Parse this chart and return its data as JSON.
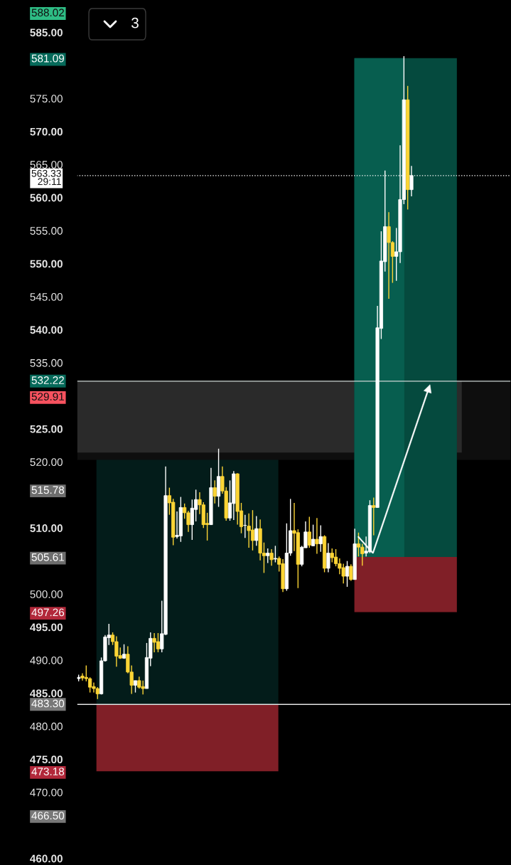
{
  "chart_data": {
    "type": "candlestick",
    "categories": [
      null,
      null,
      null,
      null,
      null,
      null,
      null,
      null,
      null,
      null,
      null,
      null,
      null,
      null,
      null,
      null,
      null,
      null,
      null,
      null,
      null,
      null,
      null,
      null,
      null,
      null,
      null,
      null,
      null,
      null,
      null,
      null,
      null,
      null,
      null,
      null,
      null,
      null,
      null,
      null,
      null,
      null,
      null,
      null,
      null,
      null,
      null,
      null,
      null,
      null,
      null,
      null,
      null,
      null,
      null,
      null,
      null,
      null,
      null,
      null,
      null,
      null,
      null,
      null,
      null,
      null,
      null,
      null,
      null,
      null,
      null,
      null,
      null,
      null,
      null,
      null,
      null,
      null,
      null,
      null,
      null,
      null,
      null,
      null,
      null,
      null,
      null,
      null,
      null
    ],
    "ohlc": [
      [
        487.2,
        487.8,
        486.8,
        487.4
      ],
      [
        487.6,
        488.0,
        486.9,
        487.3
      ],
      [
        487.4,
        489.2,
        486.8,
        487.2
      ],
      [
        487.2,
        487.4,
        485.1,
        485.9
      ],
      [
        486.0,
        486.6,
        485.1,
        485.7
      ],
      [
        485.7,
        485.9,
        484.1,
        484.9
      ],
      [
        484.9,
        490.4,
        484.8,
        489.9
      ],
      [
        489.9,
        493.8,
        489.8,
        493.5
      ],
      [
        493.4,
        495.5,
        492.3,
        493.8
      ],
      [
        493.8,
        494.2,
        492.3,
        492.8
      ],
      [
        492.8,
        493.6,
        489.0,
        490.6
      ],
      [
        490.7,
        491.9,
        490.2,
        490.3
      ],
      [
        490.3,
        492.4,
        490.2,
        490.9
      ],
      [
        490.9,
        492.1,
        488.0,
        488.2
      ],
      [
        488.2,
        489.2,
        484.9,
        486.2
      ],
      [
        486.2,
        486.9,
        485.1,
        486.9
      ],
      [
        486.9,
        487.5,
        485.7,
        485.9
      ],
      [
        486.0,
        486.9,
        484.8,
        485.7
      ],
      [
        485.7,
        492.6,
        485.7,
        490.4
      ],
      [
        490.3,
        494.2,
        489.1,
        493.3
      ],
      [
        493.3,
        494.1,
        491.2,
        492.7
      ],
      [
        492.8,
        494.1,
        491.2,
        491.7
      ],
      [
        491.7,
        499.0,
        491.2,
        494.0
      ],
      [
        493.9,
        519.3,
        493.8,
        514.9
      ],
      [
        514.9,
        516.1,
        512.0,
        513.8
      ],
      [
        513.9,
        514.4,
        507.4,
        508.6
      ],
      [
        508.7,
        512.5,
        508.4,
        508.9
      ],
      [
        508.8,
        514.7,
        507.9,
        513.1
      ],
      [
        513.1,
        513.7,
        511.4,
        512.3
      ],
      [
        512.3,
        512.6,
        509.4,
        510.5
      ],
      [
        510.5,
        514.3,
        508.2,
        513.0
      ],
      [
        512.8,
        515.8,
        511.0,
        514.3
      ],
      [
        514.3,
        515.4,
        512.1,
        513.5
      ],
      [
        513.5,
        513.9,
        510.0,
        510.5
      ],
      [
        510.7,
        512.3,
        508.1,
        510.5
      ],
      [
        510.5,
        519.1,
        510.5,
        516.1
      ],
      [
        516.1,
        517.2,
        513.7,
        514.8
      ],
      [
        514.8,
        522.0,
        513.2,
        517.8
      ],
      [
        517.8,
        519.3,
        515.2,
        515.6
      ],
      [
        515.6,
        516.2,
        511.1,
        511.5
      ],
      [
        511.5,
        517.2,
        511.1,
        513.8
      ],
      [
        513.7,
        518.6,
        511.2,
        518.2
      ],
      [
        518.2,
        518.3,
        510.5,
        512.5
      ],
      [
        512.6,
        513.8,
        509.2,
        510.2
      ],
      [
        510.4,
        512.0,
        508.5,
        510.4
      ],
      [
        510.3,
        512.2,
        507.0,
        509.6
      ],
      [
        509.7,
        512.7,
        506.6,
        508.1
      ],
      [
        508.1,
        511.8,
        507.3,
        509.9
      ],
      [
        509.9,
        511.3,
        505.1,
        506.2
      ],
      [
        506.2,
        507.8,
        503.2,
        505.8
      ],
      [
        505.8,
        506.9,
        504.7,
        506.2
      ],
      [
        506.2,
        506.8,
        504.3,
        505.2
      ],
      [
        505.3,
        507.3,
        504.8,
        505.4
      ],
      [
        505.4,
        505.7,
        503.4,
        504.5
      ],
      [
        504.6,
        505.3,
        500.3,
        500.8
      ],
      [
        500.8,
        510.7,
        500.5,
        506.2
      ],
      [
        506.2,
        514.4,
        505.8,
        509.6
      ],
      [
        509.6,
        513.8,
        506.5,
        509.2
      ],
      [
        509.3,
        509.8,
        500.9,
        504.5
      ],
      [
        504.5,
        507.3,
        504.2,
        507.1
      ],
      [
        507.0,
        511.0,
        507.0,
        509.4
      ],
      [
        509.4,
        511.7,
        507.0,
        507.4
      ],
      [
        507.3,
        510.5,
        507.3,
        508.3
      ],
      [
        508.3,
        511.5,
        506.1,
        507.6
      ],
      [
        507.6,
        510.4,
        506.4,
        508.7
      ],
      [
        508.7,
        508.9,
        503.3,
        503.9
      ],
      [
        503.9,
        507.7,
        503.3,
        506.2
      ],
      [
        506.2,
        506.9,
        504.8,
        505.5
      ],
      [
        505.6,
        506.8,
        504.2,
        504.6
      ],
      [
        504.6,
        505.4,
        503.0,
        503.9
      ],
      [
        504.0,
        504.6,
        501.6,
        502.7
      ],
      [
        502.7,
        505.0,
        501.1,
        504.2
      ],
      [
        504.2,
        504.5,
        502.0,
        502.2
      ],
      [
        502.2,
        509.9,
        502.2,
        507.6
      ],
      [
        507.6,
        509.3,
        505.7,
        507.1
      ],
      [
        507.1,
        507.6,
        504.3,
        506.1
      ],
      [
        506.2,
        508.7,
        505.7,
        506.5
      ],
      [
        506.4,
        514.2,
        506.2,
        513.4
      ],
      [
        513.4,
        514.6,
        508.9,
        513.1
      ],
      [
        513.1,
        543.6,
        513.1,
        540.3
      ],
      [
        540.2,
        554.9,
        538.6,
        550.4
      ],
      [
        550.3,
        564.1,
        548.8,
        555.6
      ],
      [
        555.6,
        557.8,
        544.7,
        553.2
      ],
      [
        553.2,
        553.4,
        547.1,
        551.1
      ],
      [
        551.1,
        555.4,
        547.4,
        551.8
      ],
      [
        551.8,
        567.9,
        550.1,
        559.7
      ],
      [
        559.7,
        581.4,
        559.0,
        574.8
      ],
      [
        574.8,
        576.9,
        558.2,
        561.2
      ],
      [
        561.2,
        564.8,
        560.2,
        563.33
      ]
    ],
    "colors": [
      "#ffffff",
      "#fcd535",
      "#fcd535",
      "#fcd535",
      "#fcd535",
      "#fcd535",
      "#ffffff",
      "#ffffff",
      "#ffffff",
      "#fcd535",
      "#fcd535",
      "#fcd535",
      "#ffffff",
      "#fcd535",
      "#fcd535",
      "#ffffff",
      "#fcd535",
      "#fcd535",
      "#ffffff",
      "#ffffff",
      "#fcd535",
      "#fcd535",
      "#ffffff",
      "#ffffff",
      "#fcd535",
      "#fcd535",
      "#ffffff",
      "#ffffff",
      "#fcd535",
      "#fcd535",
      "#ffffff",
      "#ffffff",
      "#fcd535",
      "#fcd535",
      "#fcd535",
      "#ffffff",
      "#fcd535",
      "#ffffff",
      "#fcd535",
      "#fcd535",
      "#ffffff",
      "#ffffff",
      "#fcd535",
      "#fcd535",
      "#ffffff",
      "#fcd535",
      "#fcd535",
      "#ffffff",
      "#fcd535",
      "#fcd535",
      "#ffffff",
      "#fcd535",
      "#ffffff",
      "#fcd535",
      "#fcd535",
      "#ffffff",
      "#ffffff",
      "#fcd535",
      "#fcd535",
      "#ffffff",
      "#ffffff",
      "#fcd535",
      "#ffffff",
      "#fcd535",
      "#ffffff",
      "#fcd535",
      "#ffffff",
      "#fcd535",
      "#fcd535",
      "#fcd535",
      "#fcd535",
      "#ffffff",
      "#fcd535",
      "#ffffff",
      "#fcd535",
      "#fcd535",
      "#ffffff",
      "#ffffff",
      "#fcd535",
      "#ffffff",
      "#ffffff",
      "#ffffff",
      "#fcd535",
      "#fcd535",
      "#ffffff",
      "#ffffff",
      "#ffffff",
      "#fcd535",
      "#ffffff"
    ],
    "ylim": [
      459.0,
      589.9
    ],
    "yticks": [
      {
        "value": 460,
        "label": "460.00"
      },
      {
        "value": 470,
        "label": "470.00"
      },
      {
        "value": 475,
        "label": "475.00"
      },
      {
        "value": 480,
        "label": "480.00"
      },
      {
        "value": 485,
        "label": "485.00"
      },
      {
        "value": 490,
        "label": "490.00"
      },
      {
        "value": 495,
        "label": "495.00"
      },
      {
        "value": 500,
        "label": "500.00"
      },
      {
        "value": 510,
        "label": "510.00"
      },
      {
        "value": 520,
        "label": "520.00"
      },
      {
        "value": 525,
        "label": "525.00"
      },
      {
        "value": 535,
        "label": "535.00"
      },
      {
        "value": 540,
        "label": "540.00"
      },
      {
        "value": 545,
        "label": "545.00"
      },
      {
        "value": 550,
        "label": "550.00"
      },
      {
        "value": 555,
        "label": "555.00"
      },
      {
        "value": 560,
        "label": "560.00"
      },
      {
        "value": 565,
        "label": "565.00"
      },
      {
        "value": 570,
        "label": "570.00"
      },
      {
        "value": 575,
        "label": "575.00"
      },
      {
        "value": 585,
        "label": "585.00"
      }
    ],
    "y2lim": [
      459.0,
      589.9
    ],
    "y2ticks": [
      {
        "value": 466.5,
        "label": "466.50"
      },
      473.18,
      497.26,
      505.61,
      515.78,
      529.91,
      581.09,
      588.02
    ],
    "tick_labels": "y",
    "bands": [
      {
        "axis": "y",
        "from": 483.3,
        "to": 532.22,
        "color": "#031c1a"
      },
      {
        "axis": "y",
        "from": 473.18,
        "to": 483.3,
        "color": "#801f27"
      },
      {
        "axis": "y",
        "from": 520.3,
        "to": 532.22,
        "color": "#0e0e0e"
      },
      {
        "axis": "y",
        "from": 521.4,
        "to": 532.22,
        "color": "#2a2a2a"
      },
      {
        "axis": "y",
        "from": 505.61,
        "to": 581.09,
        "color": "#054a3e"
      },
      {
        "axis": "y",
        "from": 505.61,
        "to": 581.09,
        "color": "#075e4f"
      },
      {
        "axis": "y",
        "from": 497.26,
        "to": 505.61,
        "color": "#801f27"
      }
    ],
    "ref_lines": [
      {
        "axis": "y",
        "value": 563.33,
        "label": "563.33\n29:11",
        "color": "#ffffff",
        "line_style": "dotted"
      },
      {
        "axis": "y",
        "value": 532.22,
        "label": "532.22",
        "color": "#cdd6d4",
        "line_style": "solid"
      },
      {
        "axis": "y",
        "value": 483.3,
        "label": "483.30",
        "color": "#e4e4e4",
        "line_style": "solid"
      }
    ],
    "annotations": [
      "3"
    ]
  }
}
